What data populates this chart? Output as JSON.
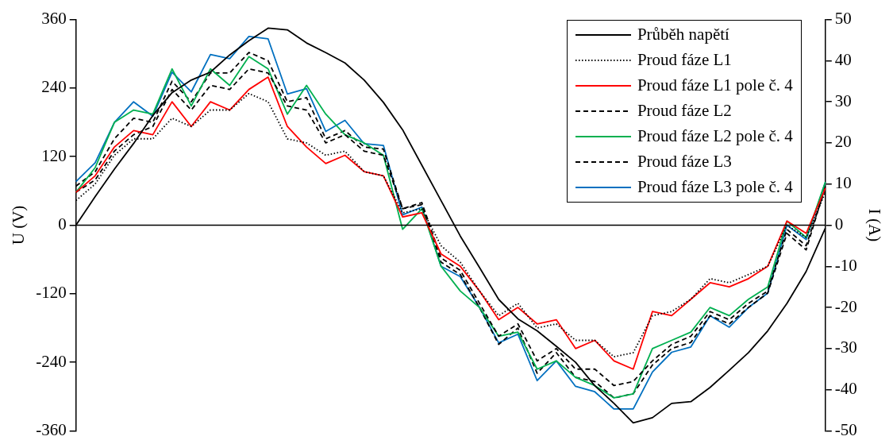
{
  "chart_data": {
    "type": "line",
    "categories": [
      null,
      null,
      null,
      null,
      null,
      null,
      null,
      null,
      null,
      null,
      null,
      null,
      null,
      null,
      null,
      null,
      null,
      null,
      null,
      null,
      null,
      null,
      null,
      null,
      null,
      null,
      null,
      null,
      null,
      null,
      null,
      null,
      null,
      null,
      null,
      null,
      null,
      null,
      null,
      null
    ],
    "ylabel": "U (V)",
    "y2label": "I (A)",
    "ylim": [
      -360,
      360
    ],
    "yticks": [
      -360,
      -240,
      -120,
      0,
      120,
      240,
      360
    ],
    "y2lim": [
      -50,
      50
    ],
    "y2ticks": [
      -50,
      -40,
      -30,
      -20,
      -10,
      0,
      10,
      20,
      30,
      40,
      50
    ],
    "grid": false,
    "legend": "top right",
    "marker": "none",
    "tick_labels": "y",
    "ref_lines": [
      {
        "axis": "y",
        "value": 0,
        "color": "#000000"
      }
    ],
    "series": [
      {
        "name": "Průběh napětí",
        "color": "#000000",
        "line_style": "solid",
        "values": [
          0,
          50,
          98,
          143,
          192,
          232,
          254,
          268,
          298,
          323,
          345,
          342,
          319,
          302,
          284,
          254,
          215,
          167,
          105,
          43,
          -19,
          -74,
          -130,
          -164,
          -185,
          -212,
          -240,
          -281,
          -312,
          -346,
          -337,
          -312,
          -309,
          -284,
          -254,
          -223,
          -185,
          -137,
          -81,
          -5
        ]
      },
      {
        "name": "Proud fáze L1",
        "color": "#000000",
        "line_style": "dotted",
        "axis": "y2",
        "values": [
          6,
          10,
          17,
          21,
          21,
          26,
          24,
          28,
          28,
          32,
          30,
          21,
          20,
          17,
          18,
          13,
          12,
          3,
          4,
          -5,
          -9,
          -16,
          -22,
          -19,
          -25,
          -24,
          -28,
          -28,
          -32,
          -31,
          -22,
          -21,
          -18,
          -13,
          -14,
          -12,
          -10,
          0,
          -3,
          8
        ]
      },
      {
        "name": "Proud fáze L1 pole č. 4",
        "color": "#ff0000",
        "line_style": "solid",
        "axis": "y2",
        "values": [
          8,
          12,
          19,
          23,
          22,
          30,
          24,
          30,
          28,
          33,
          36,
          24,
          19,
          15,
          17,
          13,
          12,
          2,
          3,
          -7,
          -10,
          -16,
          -23,
          -20,
          -24,
          -23,
          -30,
          -28,
          -33,
          -35,
          -21,
          -22,
          -18,
          -14,
          -15,
          -13,
          -10,
          1,
          -2,
          9
        ]
      },
      {
        "name": "Proud fáze L2",
        "color": "#000000",
        "line_style": "dashed",
        "axis": "y2",
        "values": [
          8,
          11,
          18,
          22,
          24,
          33,
          28,
          34,
          33,
          38,
          37,
          29,
          28,
          20,
          22,
          18,
          17,
          4,
          5.5,
          -8,
          -11,
          -19,
          -27,
          -24,
          -33,
          -30,
          -35,
          -35,
          -39,
          -38,
          -33,
          -29,
          -27,
          -21,
          -23,
          -19,
          -16,
          -1,
          -5,
          9
        ]
      },
      {
        "name": "Proud fáze L2 pole č. 4",
        "color": "#00b050",
        "line_style": "solid",
        "axis": "y2",
        "values": [
          8,
          14,
          25,
          28,
          27,
          38,
          29,
          38,
          34,
          41,
          38,
          27,
          34,
          27,
          22,
          20,
          17,
          -1,
          4,
          -10,
          -16,
          -20,
          -27,
          -26,
          -35,
          -33,
          -37,
          -39,
          -42,
          -41,
          -30,
          -28,
          -26,
          -20,
          -22,
          -18,
          -15,
          1,
          -3,
          10.5
        ]
      },
      {
        "name": "Proud fáze L3",
        "color": "#000000",
        "line_style": "dashed",
        "axis": "y2",
        "values": [
          9.5,
          13,
          21,
          26,
          25,
          35,
          30,
          37,
          37,
          42,
          40,
          30,
          31,
          21,
          23,
          19,
          18.5,
          4,
          5,
          -9,
          -12,
          -20,
          -29,
          -25,
          -36,
          -31,
          -37,
          -38,
          -42,
          -41,
          -34,
          -30,
          -28.5,
          -22,
          -24,
          -20,
          -16.5,
          -2,
          -6,
          9.5
        ]
      },
      {
        "name": "Proud fáze L3 pole č. 4",
        "color": "#0070c0",
        "line_style": "solid",
        "axis": "y2",
        "values": [
          10.6,
          15.2,
          25,
          30,
          26.5,
          37.2,
          32.4,
          41.5,
          40.5,
          45.9,
          45.3,
          31.9,
          33.2,
          22.8,
          25.5,
          19.8,
          19.4,
          2.5,
          4.4,
          -10,
          -12.5,
          -20,
          -28.6,
          -26.5,
          -37.8,
          -33,
          -39.2,
          -40.5,
          -44.7,
          -44.7,
          -35.7,
          -30.9,
          -29.6,
          -22,
          -24.8,
          -20,
          -16.5,
          0,
          -3.5,
          10.4
        ]
      }
    ]
  }
}
